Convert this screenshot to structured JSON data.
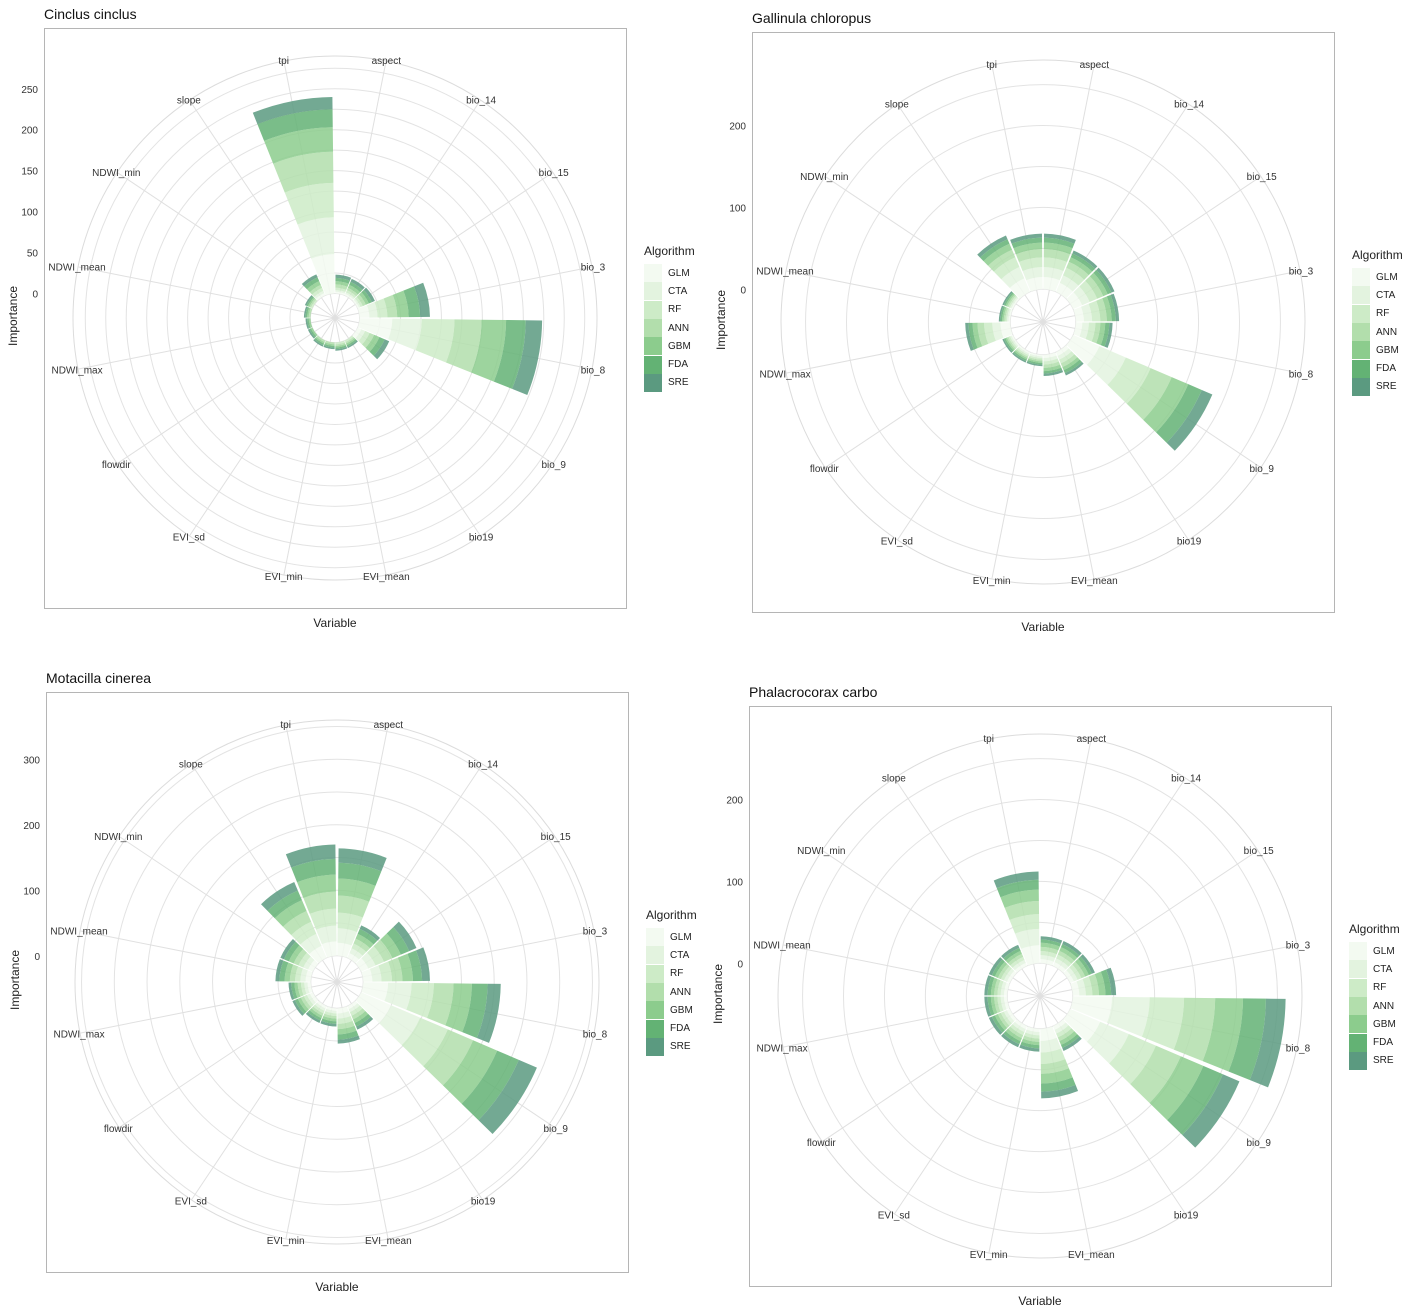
{
  "legend": {
    "title": "Algorithm",
    "items": [
      {
        "label": "GLM",
        "color": "#f3faf1"
      },
      {
        "label": "CTA",
        "color": "#e3f3df"
      },
      {
        "label": "RF",
        "color": "#cdebc7"
      },
      {
        "label": "ANN",
        "color": "#b2deac"
      },
      {
        "label": "GBM",
        "color": "#8ccc8d"
      },
      {
        "label": "FDA",
        "color": "#63b274"
      },
      {
        "label": "SRE",
        "color": "#5b9a80"
      }
    ]
  },
  "chart_data": [
    {
      "type": "polar-stacked-bar",
      "title": "Cinclus cinclus",
      "xlabel": "Variable",
      "ylabel": "Importance",
      "yticks": [
        0,
        50,
        100,
        150,
        200,
        250
      ],
      "ylim": [
        -30,
        290
      ],
      "categories": [
        "aspect",
        "bio_14",
        "bio_15",
        "bio_3",
        "bio_8",
        "bio_9",
        "bio19",
        "EVI_mean",
        "EVI_min",
        "EVI_sd",
        "flowdir",
        "NDWI_max",
        "NDWI_mean",
        "NDWI_min",
        "slope",
        "tpi"
      ],
      "series": [
        {
          "name": "GLM",
          "values": [
            2,
            2,
            2,
            12,
            40,
            5,
            0,
            0,
            0,
            0,
            0,
            0,
            0,
            0,
            3,
            48
          ]
        },
        {
          "name": "CTA",
          "values": [
            2,
            2,
            2,
            10,
            36,
            5,
            0,
            0,
            0,
            0,
            0,
            0,
            0,
            0,
            3,
            45
          ]
        },
        {
          "name": "RF",
          "values": [
            3,
            3,
            3,
            12,
            40,
            6,
            2,
            2,
            0,
            0,
            0,
            0,
            0,
            2,
            4,
            42
          ]
        },
        {
          "name": "ANN",
          "values": [
            4,
            3,
            4,
            12,
            33,
            6,
            2,
            2,
            2,
            2,
            0,
            0,
            2,
            2,
            4,
            38
          ]
        },
        {
          "name": "GBM",
          "values": [
            4,
            4,
            4,
            14,
            30,
            7,
            2,
            2,
            2,
            2,
            2,
            2,
            2,
            2,
            5,
            30
          ]
        },
        {
          "name": "FDA",
          "values": [
            4,
            4,
            4,
            14,
            24,
            7,
            2,
            2,
            2,
            2,
            2,
            2,
            2,
            2,
            5,
            22
          ]
        },
        {
          "name": "SRE",
          "values": [
            4,
            4,
            4,
            12,
            20,
            6,
            2,
            2,
            2,
            2,
            2,
            2,
            2,
            2,
            4,
            15
          ]
        }
      ]
    },
    {
      "type": "polar-stacked-bar",
      "title": "Gallinula chloropus",
      "xlabel": "Variable",
      "ylabel": "Importance",
      "yticks": [
        0,
        100,
        200
      ],
      "ylim": [
        -40,
        280
      ],
      "categories": [
        "aspect",
        "bio_14",
        "bio_15",
        "bio_3",
        "bio_8",
        "bio_9",
        "bio19",
        "EVI_mean",
        "EVI_min",
        "EVI_sd",
        "flowdir",
        "NDWI_max",
        "NDWI_mean",
        "NDWI_min",
        "slope",
        "tpi"
      ],
      "series": [
        {
          "name": "GLM",
          "values": [
            15,
            12,
            12,
            10,
            8,
            35,
            5,
            4,
            2,
            2,
            2,
            12,
            2,
            2,
            18,
            15
          ]
        },
        {
          "name": "CTA",
          "values": [
            12,
            10,
            10,
            10,
            8,
            35,
            5,
            4,
            2,
            2,
            2,
            10,
            2,
            2,
            15,
            12
          ]
        },
        {
          "name": "RF",
          "values": [
            12,
            10,
            10,
            10,
            8,
            33,
            5,
            4,
            2,
            2,
            2,
            10,
            2,
            2,
            13,
            12
          ]
        },
        {
          "name": "ANN",
          "values": [
            10,
            8,
            8,
            8,
            6,
            28,
            5,
            4,
            2,
            2,
            2,
            8,
            2,
            2,
            10,
            10
          ]
        },
        {
          "name": "GBM",
          "values": [
            8,
            6,
            6,
            6,
            6,
            22,
            4,
            4,
            2,
            2,
            2,
            6,
            2,
            2,
            8,
            8
          ]
        },
        {
          "name": "FDA",
          "values": [
            6,
            5,
            5,
            5,
            5,
            18,
            4,
            3,
            2,
            2,
            2,
            5,
            2,
            2,
            6,
            6
          ]
        },
        {
          "name": "SRE",
          "values": [
            5,
            4,
            4,
            4,
            4,
            14,
            3,
            3,
            2,
            2,
            2,
            4,
            2,
            2,
            5,
            5
          ]
        }
      ]
    },
    {
      "type": "polar-stacked-bar",
      "title": "Motacilla cinerea",
      "xlabel": "Variable",
      "ylabel": "Importance",
      "yticks": [
        0,
        100,
        200,
        300
      ],
      "ylim": [
        -40,
        360
      ],
      "categories": [
        "aspect",
        "bio_14",
        "bio_15",
        "bio_3",
        "bio_8",
        "bio_9",
        "bio19",
        "EVI_mean",
        "EVI_min",
        "EVI_sd",
        "flowdir",
        "NDWI_max",
        "NDWI_mean",
        "NDWI_min",
        "slope",
        "tpi"
      ],
      "series": [
        {
          "name": "GLM",
          "values": [
            20,
            8,
            12,
            14,
            38,
            50,
            5,
            8,
            4,
            4,
            5,
            5,
            8,
            8,
            20,
            22
          ]
        },
        {
          "name": "CTA",
          "values": [
            22,
            8,
            12,
            14,
            36,
            48,
            5,
            8,
            4,
            4,
            5,
            5,
            8,
            8,
            20,
            24
          ]
        },
        {
          "name": "RF",
          "values": [
            24,
            8,
            14,
            16,
            34,
            46,
            6,
            8,
            4,
            4,
            5,
            5,
            8,
            8,
            20,
            26
          ]
        },
        {
          "name": "ANN",
          "values": [
            26,
            8,
            14,
            16,
            30,
            42,
            6,
            8,
            4,
            4,
            5,
            5,
            8,
            8,
            18,
            26
          ]
        },
        {
          "name": "GBM",
          "values": [
            26,
            8,
            14,
            16,
            28,
            40,
            6,
            8,
            4,
            4,
            5,
            5,
            8,
            8,
            18,
            26
          ]
        },
        {
          "name": "FDA",
          "values": [
            24,
            8,
            14,
            14,
            24,
            36,
            6,
            8,
            4,
            4,
            5,
            5,
            8,
            8,
            16,
            24
          ]
        },
        {
          "name": "SRE",
          "values": [
            22,
            6,
            12,
            12,
            20,
            30,
            5,
            6,
            4,
            4,
            4,
            4,
            6,
            6,
            14,
            22
          ]
        }
      ]
    },
    {
      "type": "polar-stacked-bar",
      "title": "Phalacrocorax carbo",
      "xlabel": "Variable",
      "ylabel": "Importance",
      "yticks": [
        0,
        100,
        200
      ],
      "ylim": [
        -40,
        280
      ],
      "categories": [
        "aspect",
        "bio_14",
        "bio_15",
        "bio_3",
        "bio_8",
        "bio_9",
        "bio19",
        "EVI_mean",
        "EVI_min",
        "EVI_sd",
        "flowdir",
        "NDWI_max",
        "NDWI_mean",
        "NDWI_min",
        "slope",
        "tpi"
      ],
      "series": [
        {
          "name": "GLM",
          "values": [
            5,
            5,
            5,
            8,
            48,
            40,
            5,
            15,
            4,
            4,
            4,
            4,
            4,
            4,
            4,
            22
          ]
        },
        {
          "name": "CTA",
          "values": [
            5,
            5,
            5,
            8,
            46,
            38,
            5,
            14,
            4,
            4,
            4,
            4,
            4,
            4,
            4,
            20
          ]
        },
        {
          "name": "RF",
          "values": [
            5,
            5,
            5,
            8,
            42,
            36,
            5,
            14,
            4,
            4,
            4,
            4,
            4,
            4,
            4,
            18
          ]
        },
        {
          "name": "ANN",
          "values": [
            5,
            5,
            5,
            8,
            38,
            33,
            5,
            12,
            4,
            4,
            4,
            4,
            4,
            4,
            4,
            16
          ]
        },
        {
          "name": "GBM",
          "values": [
            5,
            5,
            5,
            8,
            34,
            30,
            5,
            12,
            4,
            4,
            4,
            4,
            4,
            4,
            4,
            14
          ]
        },
        {
          "name": "FDA",
          "values": [
            4,
            4,
            4,
            7,
            28,
            26,
            4,
            10,
            4,
            4,
            4,
            4,
            4,
            4,
            4,
            12
          ]
        },
        {
          "name": "SRE",
          "values": [
            4,
            4,
            4,
            6,
            24,
            22,
            4,
            8,
            4,
            4,
            4,
            4,
            4,
            4,
            4,
            10
          ]
        }
      ]
    }
  ]
}
